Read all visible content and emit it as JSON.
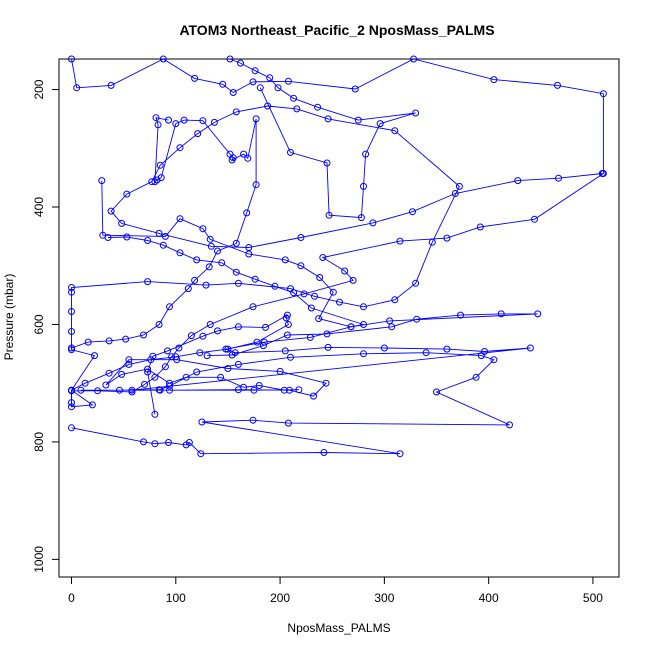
{
  "chart_data": {
    "type": "scatter",
    "title": "ATOM3 Northeast_Pacific_2 NposMass_PALMS",
    "xlabel": "NposMass_PALMS",
    "ylabel": "Pressure (mbar)",
    "xlim": [
      -12,
      525
    ],
    "ylim": [
      1030,
      148
    ],
    "y_reversed": true,
    "x_ticks": [
      0,
      100,
      200,
      300,
      400,
      500
    ],
    "y_ticks": [
      200,
      400,
      600,
      800,
      1000
    ],
    "grid": false,
    "series_color": "#0000ff",
    "series": [
      {
        "points": [
          [
            0,
            148
          ],
          [
            5,
            197
          ],
          [
            38,
            193
          ],
          [
            88,
            148
          ],
          [
            118,
            181
          ],
          [
            145,
            191
          ],
          [
            155,
            205
          ],
          [
            174,
            187
          ],
          [
            208,
            186
          ],
          [
            272,
            199
          ],
          [
            328,
            148
          ],
          [
            405,
            183
          ],
          [
            466,
            193
          ],
          [
            510,
            207
          ],
          [
            510,
            343
          ],
          [
            444,
            421
          ],
          [
            392,
            434
          ],
          [
            360,
            453
          ],
          [
            315,
            458
          ],
          [
            241,
            486
          ],
          [
            262,
            509
          ],
          [
            270,
            525
          ],
          [
            223,
            548
          ],
          [
            174,
            570
          ],
          [
            133,
            600
          ],
          [
            115,
            619
          ],
          [
            103,
            640
          ],
          [
            96,
            655
          ],
          [
            90,
            672
          ],
          [
            80,
            690
          ],
          [
            70,
            702
          ],
          [
            58,
            715
          ],
          [
            25,
            713
          ],
          [
            0,
            713
          ],
          [
            0,
            740
          ],
          [
            20,
            737
          ],
          [
            0,
            712
          ],
          [
            22,
            653
          ],
          [
            0,
            643
          ],
          [
            0,
            612
          ],
          [
            0,
            578
          ],
          [
            0,
            545
          ],
          [
            0,
            537
          ],
          [
            73,
            527
          ],
          [
            129,
            533
          ],
          [
            160,
            530
          ],
          [
            210,
            539
          ],
          [
            233,
            552
          ],
          [
            257,
            562
          ],
          [
            280,
            570
          ],
          [
            310,
            558
          ],
          [
            330,
            530
          ],
          [
            346,
            460
          ],
          [
            372,
            365
          ],
          [
            310,
            270
          ],
          [
            246,
            250
          ],
          [
            216,
            233
          ],
          [
            188,
            228
          ],
          [
            158,
            238
          ],
          [
            137,
            256
          ],
          [
            121,
            275
          ],
          [
            104,
            299
          ],
          [
            85,
            329
          ],
          [
            77,
            357
          ],
          [
            53,
            378
          ],
          [
            38,
            407
          ],
          [
            48,
            428
          ],
          [
            84,
            445
          ],
          [
            134,
            467
          ],
          [
            170,
            469
          ],
          [
            220,
            452
          ],
          [
            289,
            427
          ],
          [
            327,
            408
          ],
          [
            368,
            377
          ],
          [
            428,
            355
          ],
          [
            467,
            351
          ],
          [
            509,
            343
          ]
        ]
      },
      {
        "points": [
          [
            0,
            776
          ],
          [
            69,
            800
          ],
          [
            80,
            803
          ],
          [
            93,
            801
          ],
          [
            110,
            805
          ],
          [
            113,
            801
          ],
          [
            124,
            820
          ],
          [
            242,
            818
          ],
          [
            315,
            820
          ],
          [
            125,
            766
          ],
          [
            174,
            763
          ],
          [
            208,
            768
          ],
          [
            420,
            771
          ],
          [
            350,
            715
          ],
          [
            388,
            690
          ],
          [
            405,
            660
          ],
          [
            393,
            653
          ],
          [
            340,
            648
          ],
          [
            280,
            650
          ],
          [
            210,
            656
          ],
          [
            160,
            668
          ],
          [
            120,
            681
          ],
          [
            94,
            705
          ],
          [
            84,
            711
          ],
          [
            46,
            712
          ],
          [
            9,
            712
          ],
          [
            94,
            712
          ],
          [
            160,
            711
          ],
          [
            209,
            712
          ],
          [
            232,
            722
          ],
          [
            244,
            700
          ],
          [
            200,
            680
          ],
          [
            150,
            675
          ],
          [
            101,
            660
          ],
          [
            55,
            660
          ],
          [
            33,
            703
          ],
          [
            48,
            685
          ],
          [
            73,
            676
          ],
          [
            94,
            700
          ],
          [
            110,
            690
          ],
          [
            143,
            690
          ],
          [
            165,
            707
          ],
          [
            180,
            704
          ],
          [
            204,
            712
          ],
          [
            218,
            711
          ],
          [
            175,
            712
          ],
          [
            85,
            712
          ],
          [
            58,
            712
          ],
          [
            440,
            640
          ],
          [
            396,
            646
          ],
          [
            360,
            642
          ],
          [
            300,
            640
          ],
          [
            246,
            639
          ],
          [
            205,
            645
          ],
          [
            157,
            648
          ],
          [
            148,
            642
          ],
          [
            185,
            630
          ],
          [
            229,
            622
          ],
          [
            268,
            604
          ],
          [
            305,
            594
          ],
          [
            447,
            582
          ],
          [
            412,
            582
          ],
          [
            373,
            584
          ],
          [
            331,
            591
          ],
          [
            307,
            604
          ],
          [
            245,
            616
          ],
          [
            207,
            618
          ],
          [
            184,
            636
          ],
          [
            154,
            652
          ],
          [
            130,
            653
          ]
        ]
      },
      {
        "points": [
          [
            93,
            252
          ],
          [
            81,
            248
          ],
          [
            83,
            260
          ],
          [
            80,
            357
          ],
          [
            82,
            354
          ],
          [
            86,
            350
          ],
          [
            100,
            258
          ],
          [
            108,
            252
          ],
          [
            126,
            253
          ],
          [
            152,
            310
          ],
          [
            155,
            316
          ],
          [
            154,
            320
          ],
          [
            165,
            310
          ],
          [
            169,
            317
          ],
          [
            177,
            250
          ],
          [
            177,
            362
          ],
          [
            168,
            410
          ],
          [
            158,
            462
          ],
          [
            140,
            475
          ],
          [
            132,
            502
          ],
          [
            118,
            525
          ],
          [
            112,
            539
          ],
          [
            94,
            570
          ],
          [
            84,
            600
          ],
          [
            69,
            618
          ],
          [
            52,
            625
          ],
          [
            36,
            628
          ],
          [
            16,
            630
          ],
          [
            0,
            640
          ]
        ]
      },
      {
        "points": [
          [
            29,
            355
          ],
          [
            30,
            448
          ],
          [
            90,
            450
          ],
          [
            104,
            420
          ],
          [
            126,
            437
          ],
          [
            133,
            455
          ],
          [
            170,
            480
          ],
          [
            205,
            490
          ],
          [
            220,
            500
          ],
          [
            238,
            520
          ],
          [
            251,
            545
          ],
          [
            237,
            590
          ],
          [
            268,
            604
          ],
          [
            280,
            600
          ],
          [
            230,
            572
          ],
          [
            213,
            546
          ],
          [
            195,
            535
          ],
          [
            176,
            523
          ],
          [
            158,
            511
          ],
          [
            144,
            495
          ],
          [
            120,
            490
          ],
          [
            104,
            478
          ],
          [
            88,
            465
          ],
          [
            73,
            457
          ],
          [
            53,
            451
          ],
          [
            35,
            452
          ]
        ]
      },
      {
        "points": [
          [
            181,
            197
          ],
          [
            210,
            307
          ],
          [
            245,
            325
          ],
          [
            247,
            414
          ],
          [
            278,
            418
          ],
          [
            280,
            365
          ],
          [
            282,
            310
          ],
          [
            296,
            258
          ],
          [
            330,
            240
          ],
          [
            275,
            252
          ],
          [
            236,
            230
          ],
          [
            213,
            215
          ],
          [
            198,
            197
          ],
          [
            190,
            180
          ],
          [
            176,
            168
          ],
          [
            162,
            155
          ],
          [
            152,
            148
          ]
        ]
      },
      {
        "points": [
          [
            0,
            733
          ],
          [
            0,
            712
          ],
          [
            13,
            700
          ],
          [
            36,
            683
          ],
          [
            55,
            668
          ],
          [
            76,
            660
          ],
          [
            100,
            655
          ],
          [
            123,
            648
          ],
          [
            150,
            642
          ],
          [
            178,
            630
          ],
          [
            208,
            600
          ],
          [
            206,
            589
          ],
          [
            207,
            584
          ],
          [
            186,
            605
          ],
          [
            160,
            604
          ],
          [
            140,
            611
          ],
          [
            126,
            620
          ],
          [
            92,
            645
          ],
          [
            78,
            654
          ],
          [
            73,
            681
          ],
          [
            80,
            753
          ]
        ]
      }
    ]
  }
}
